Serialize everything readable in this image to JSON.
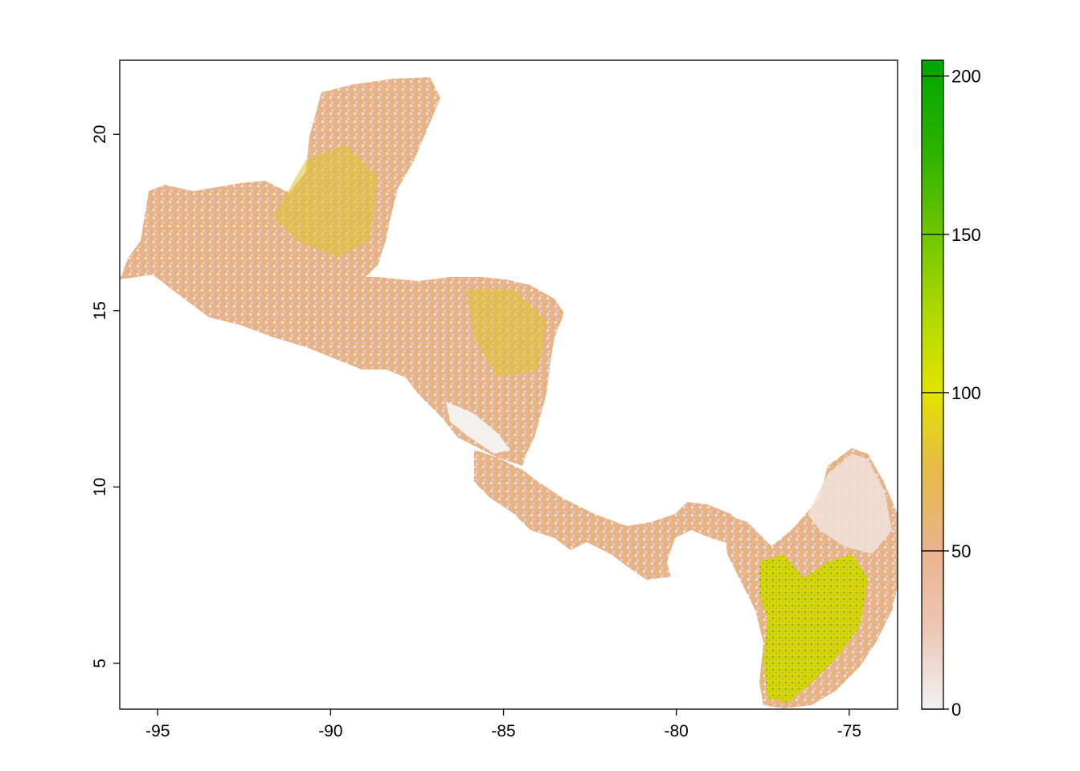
{
  "map": {
    "x_axis": {
      "min": -96.1,
      "max": -73.6,
      "ticks": [
        {
          "value": -95,
          "label": "-95"
        },
        {
          "value": -90,
          "label": "-90"
        },
        {
          "value": -85,
          "label": "-85"
        },
        {
          "value": -80,
          "label": "-80"
        },
        {
          "value": -75,
          "label": "-75"
        }
      ]
    },
    "y_axis": {
      "min": 3.7,
      "max": 22.1,
      "ticks": [
        {
          "value": 5,
          "label": "5"
        },
        {
          "value": 10,
          "label": "10"
        },
        {
          "value": 15,
          "label": "15"
        },
        {
          "value": 20,
          "label": "20"
        }
      ]
    },
    "legend": {
      "min": 0,
      "max": 205,
      "ticks": [
        {
          "value": 0,
          "label": "0"
        },
        {
          "value": 50,
          "label": "50"
        },
        {
          "value": 100,
          "label": "100"
        },
        {
          "value": 150,
          "label": "150"
        },
        {
          "value": 200,
          "label": "200"
        }
      ],
      "color_stops": [
        {
          "value": 0,
          "color": "#f2f2f2"
        },
        {
          "value": 25,
          "color": "#ecc7b5"
        },
        {
          "value": 50,
          "color": "#e9b48f"
        },
        {
          "value": 75,
          "color": "#e6b94a"
        },
        {
          "value": 100,
          "color": "#e1e300"
        },
        {
          "value": 125,
          "color": "#b0d800"
        },
        {
          "value": 150,
          "color": "#6ec700"
        },
        {
          "value": 175,
          "color": "#2fb300"
        },
        {
          "value": 205,
          "color": "#00a600"
        }
      ]
    },
    "land_base_color": "#e8b596"
  }
}
